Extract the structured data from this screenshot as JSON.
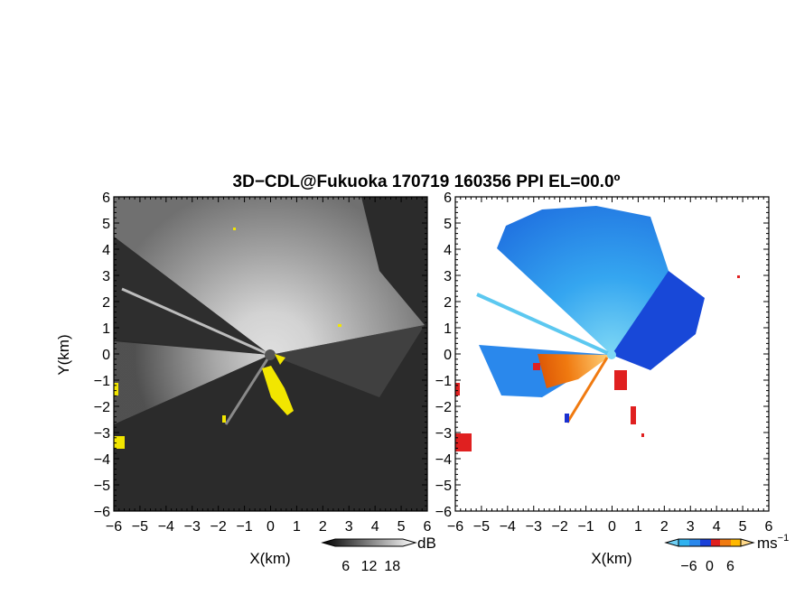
{
  "chart_data": {
    "title": "3D−CDL@Fukuoka 170719 160356 PPI EL=00.0º",
    "panels": [
      {
        "type": "heatmap",
        "name": "reflectivity",
        "xlabel": "X(km)",
        "ylabel": "Y(km)",
        "xlim": [
          -6,
          6
        ],
        "ylim": [
          -6,
          6
        ],
        "xticks": [
          "−6",
          "−5",
          "−4",
          "−3",
          "−2",
          "−1",
          "0",
          "1",
          "2",
          "3",
          "4",
          "5",
          "6"
        ],
        "yticks": [
          "−6",
          "−5",
          "−4",
          "−3",
          "−2",
          "−1",
          "0",
          "1",
          "2",
          "3",
          "4",
          "5",
          "6"
        ],
        "background": "#2b2b2b",
        "colorbar": {
          "unit": "dB",
          "ticks": [
            "6",
            "12",
            "18"
          ],
          "range": [
            0,
            24
          ]
        }
      },
      {
        "type": "heatmap",
        "name": "radial-velocity",
        "xlabel": "X(km)",
        "ylabel": "",
        "xlim": [
          -6,
          6
        ],
        "ylim": [
          -6,
          6
        ],
        "xticks": [
          "−6",
          "−5",
          "−4",
          "−3",
          "−2",
          "−1",
          "0",
          "1",
          "2",
          "3",
          "4",
          "5",
          "6"
        ],
        "yticks": [
          "−6",
          "−5",
          "−4",
          "−3",
          "−2",
          "−1",
          "0",
          "1",
          "2",
          "3",
          "4",
          "5",
          "6"
        ],
        "background": "#ffffff",
        "colorbar": {
          "unit": "ms",
          "unit_exp": "−1",
          "ticks": [
            "−6",
            "0",
            "6"
          ],
          "range": [
            -9,
            9
          ]
        }
      }
    ]
  }
}
